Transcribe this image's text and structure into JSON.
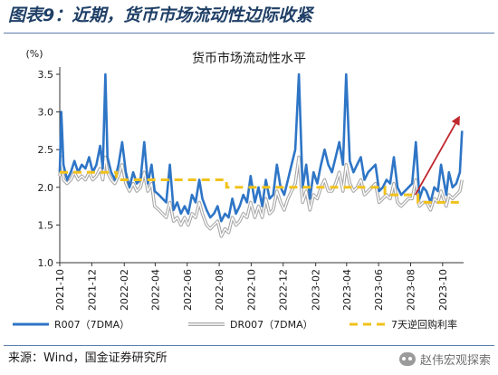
{
  "header": {
    "title": "图表9：近期，货币市场流动性边际收紧"
  },
  "footer": {
    "source": "来源：Wind，国金证券研究所",
    "watermark": "赵伟宏观探索"
  },
  "colors": {
    "header_text": "#1f3f66",
    "rule": "#5a7fa8",
    "r007": "#2e75c6",
    "dr007": "#a8a8a8",
    "reverse_repo": "#f2c21b",
    "arrow": "#c0282d"
  },
  "chart_data": {
    "type": "line",
    "title": "货币市场流动性水平",
    "ylabel": "(%)",
    "ylim": [
      1.0,
      3.5
    ],
    "yticks": [
      "1.0",
      "1.5",
      "2.0",
      "2.5",
      "3.0",
      "3.5"
    ],
    "xlim": [
      "2021-10-01",
      "2023-11-10"
    ],
    "xticks": [
      "2021-10",
      "2021-12",
      "2022-02",
      "2022-04",
      "2022-06",
      "2022-08",
      "2022-10",
      "2022-12",
      "2023-02",
      "2023-04",
      "2023-06",
      "2023-08",
      "2023-10"
    ],
    "grid": false,
    "legend_position": "bottom",
    "series": [
      {
        "name": "R007（7DMA）",
        "style": "line",
        "x": [
          "2021-10-01",
          "2021-10-04",
          "2021-10-08",
          "2021-10-15",
          "2021-10-22",
          "2021-10-29",
          "2021-11-05",
          "2021-11-12",
          "2021-11-19",
          "2021-11-26",
          "2021-12-03",
          "2021-12-10",
          "2021-12-17",
          "2021-12-22",
          "2021-12-27",
          "2021-12-31",
          "2022-01-07",
          "2022-01-14",
          "2022-01-21",
          "2022-01-28",
          "2022-02-04",
          "2022-02-11",
          "2022-02-18",
          "2022-02-25",
          "2022-03-04",
          "2022-03-11",
          "2022-03-18",
          "2022-03-25",
          "2022-03-31",
          "2022-04-08",
          "2022-04-15",
          "2022-04-22",
          "2022-04-29",
          "2022-05-06",
          "2022-05-13",
          "2022-05-20",
          "2022-05-27",
          "2022-06-03",
          "2022-06-10",
          "2022-06-17",
          "2022-06-24",
          "2022-06-30",
          "2022-07-08",
          "2022-07-15",
          "2022-07-22",
          "2022-07-29",
          "2022-08-05",
          "2022-08-12",
          "2022-08-19",
          "2022-08-26",
          "2022-09-02",
          "2022-09-09",
          "2022-09-16",
          "2022-09-23",
          "2022-09-30",
          "2022-10-08",
          "2022-10-15",
          "2022-10-22",
          "2022-10-29",
          "2022-11-05",
          "2022-11-12",
          "2022-11-19",
          "2022-11-26",
          "2022-12-03",
          "2022-12-10",
          "2022-12-17",
          "2022-12-24",
          "2022-12-31",
          "2023-01-07",
          "2023-01-14",
          "2023-01-21",
          "2023-01-28",
          "2023-02-04",
          "2023-02-11",
          "2023-02-18",
          "2023-02-25",
          "2023-03-04",
          "2023-03-11",
          "2023-03-18",
          "2023-03-25",
          "2023-03-31",
          "2023-04-07",
          "2023-04-14",
          "2023-04-21",
          "2023-04-28",
          "2023-05-05",
          "2023-05-12",
          "2023-05-19",
          "2023-05-26",
          "2023-06-02",
          "2023-06-09",
          "2023-06-16",
          "2023-06-23",
          "2023-06-30",
          "2023-07-07",
          "2023-07-14",
          "2023-07-21",
          "2023-07-28",
          "2023-08-04",
          "2023-08-11",
          "2023-08-18",
          "2023-08-25",
          "2023-08-31",
          "2023-09-08",
          "2023-09-15",
          "2023-09-22",
          "2023-09-28",
          "2023-10-08",
          "2023-10-13",
          "2023-10-20",
          "2023-10-27",
          "2023-11-03",
          "2023-11-07"
        ],
        "values": [
          2.2,
          3.0,
          2.3,
          2.1,
          2.2,
          2.35,
          2.2,
          2.3,
          2.25,
          2.4,
          2.2,
          2.3,
          2.55,
          2.25,
          3.5,
          2.4,
          2.2,
          2.1,
          2.3,
          2.6,
          2.2,
          2.0,
          2.2,
          2.05,
          2.1,
          2.6,
          2.05,
          2.3,
          1.95,
          1.9,
          1.85,
          1.8,
          2.3,
          1.7,
          1.8,
          1.65,
          1.75,
          1.65,
          1.9,
          1.8,
          2.1,
          1.85,
          1.7,
          1.6,
          1.65,
          1.75,
          1.55,
          1.65,
          1.6,
          1.85,
          1.65,
          1.75,
          1.9,
          1.8,
          2.15,
          1.8,
          2.0,
          1.75,
          2.1,
          1.85,
          1.9,
          2.3,
          2.0,
          1.9,
          2.1,
          2.3,
          2.5,
          3.5,
          2.0,
          2.3,
          1.85,
          2.2,
          2.05,
          2.3,
          2.5,
          2.3,
          2.2,
          2.4,
          2.6,
          2.3,
          3.5,
          2.35,
          2.2,
          2.3,
          2.4,
          2.1,
          2.2,
          2.25,
          2.3,
          1.95,
          2.0,
          2.1,
          2.05,
          2.4,
          2.0,
          1.9,
          1.95,
          2.0,
          2.05,
          2.6,
          1.85,
          2.0,
          1.95,
          1.8,
          2.0,
          1.95,
          2.3,
          1.9,
          2.2,
          2.0,
          2.05,
          2.2,
          2.75
        ]
      },
      {
        "name": "DR007（7DMA）",
        "style": "double-line",
        "x": [
          "2021-10-01",
          "2021-10-04",
          "2021-10-08",
          "2021-10-15",
          "2021-10-22",
          "2021-10-29",
          "2021-11-05",
          "2021-11-12",
          "2021-11-19",
          "2021-11-26",
          "2021-12-03",
          "2021-12-10",
          "2021-12-17",
          "2021-12-22",
          "2021-12-27",
          "2021-12-31",
          "2022-01-07",
          "2022-01-14",
          "2022-01-21",
          "2022-01-28",
          "2022-02-04",
          "2022-02-11",
          "2022-02-18",
          "2022-02-25",
          "2022-03-04",
          "2022-03-11",
          "2022-03-18",
          "2022-03-25",
          "2022-03-31",
          "2022-04-08",
          "2022-04-15",
          "2022-04-22",
          "2022-04-29",
          "2022-05-06",
          "2022-05-13",
          "2022-05-20",
          "2022-05-27",
          "2022-06-03",
          "2022-06-10",
          "2022-06-17",
          "2022-06-24",
          "2022-06-30",
          "2022-07-08",
          "2022-07-15",
          "2022-07-22",
          "2022-07-29",
          "2022-08-05",
          "2022-08-12",
          "2022-08-19",
          "2022-08-26",
          "2022-09-02",
          "2022-09-09",
          "2022-09-16",
          "2022-09-23",
          "2022-09-30",
          "2022-10-08",
          "2022-10-15",
          "2022-10-22",
          "2022-10-29",
          "2022-11-05",
          "2022-11-12",
          "2022-11-19",
          "2022-11-26",
          "2022-12-03",
          "2022-12-10",
          "2022-12-17",
          "2022-12-24",
          "2022-12-31",
          "2023-01-07",
          "2023-01-14",
          "2023-01-21",
          "2023-01-28",
          "2023-02-04",
          "2023-02-11",
          "2023-02-18",
          "2023-02-25",
          "2023-03-04",
          "2023-03-11",
          "2023-03-18",
          "2023-03-25",
          "2023-03-31",
          "2023-04-07",
          "2023-04-14",
          "2023-04-21",
          "2023-04-28",
          "2023-05-05",
          "2023-05-12",
          "2023-05-19",
          "2023-05-26",
          "2023-06-02",
          "2023-06-09",
          "2023-06-16",
          "2023-06-23",
          "2023-06-30",
          "2023-07-07",
          "2023-07-14",
          "2023-07-21",
          "2023-07-28",
          "2023-08-04",
          "2023-08-11",
          "2023-08-18",
          "2023-08-25",
          "2023-08-31",
          "2023-09-08",
          "2023-09-15",
          "2023-09-22",
          "2023-09-28",
          "2023-10-08",
          "2023-10-13",
          "2023-10-20",
          "2023-10-27",
          "2023-11-03",
          "2023-11-07"
        ],
        "values": [
          2.15,
          2.4,
          2.1,
          2.05,
          2.1,
          2.2,
          2.1,
          2.15,
          2.1,
          2.2,
          2.1,
          2.15,
          2.25,
          2.1,
          2.4,
          2.2,
          2.1,
          2.05,
          2.15,
          2.3,
          2.05,
          1.95,
          2.05,
          1.95,
          2.0,
          2.2,
          1.95,
          2.05,
          1.75,
          1.7,
          1.65,
          1.6,
          1.8,
          1.55,
          1.6,
          1.5,
          1.6,
          1.5,
          1.65,
          1.6,
          1.8,
          1.65,
          1.5,
          1.45,
          1.5,
          1.55,
          1.35,
          1.45,
          1.4,
          1.6,
          1.5,
          1.55,
          1.65,
          1.6,
          1.8,
          1.6,
          1.75,
          1.6,
          1.85,
          1.65,
          1.7,
          1.95,
          1.8,
          1.7,
          1.85,
          1.95,
          2.05,
          2.4,
          1.8,
          1.95,
          1.7,
          1.9,
          1.85,
          2.0,
          2.1,
          1.95,
          1.95,
          2.05,
          2.2,
          1.95,
          2.3,
          2.05,
          1.95,
          2.0,
          2.1,
          1.9,
          1.95,
          2.0,
          2.05,
          1.8,
          1.85,
          1.9,
          1.85,
          2.05,
          1.8,
          1.75,
          1.8,
          1.85,
          1.85,
          2.1,
          1.75,
          1.8,
          1.8,
          1.7,
          1.85,
          1.8,
          1.95,
          1.75,
          1.9,
          1.85,
          1.9,
          1.95,
          2.1
        ]
      },
      {
        "name": "7天逆回购利率",
        "style": "dashed-step",
        "x": [
          "2021-10-01",
          "2022-01-17",
          "2022-01-17",
          "2022-08-15",
          "2022-08-15",
          "2023-06-13",
          "2023-06-13",
          "2023-08-15",
          "2023-08-15",
          "2023-11-10"
        ],
        "values": [
          2.2,
          2.2,
          2.1,
          2.1,
          2.0,
          2.0,
          1.9,
          1.9,
          1.8,
          1.8
        ]
      }
    ],
    "annotations": [
      {
        "type": "arrow",
        "from": {
          "x": "2023-08-10",
          "y": 1.9
        },
        "to": {
          "x": "2023-11-03",
          "y": 2.95
        }
      }
    ]
  }
}
